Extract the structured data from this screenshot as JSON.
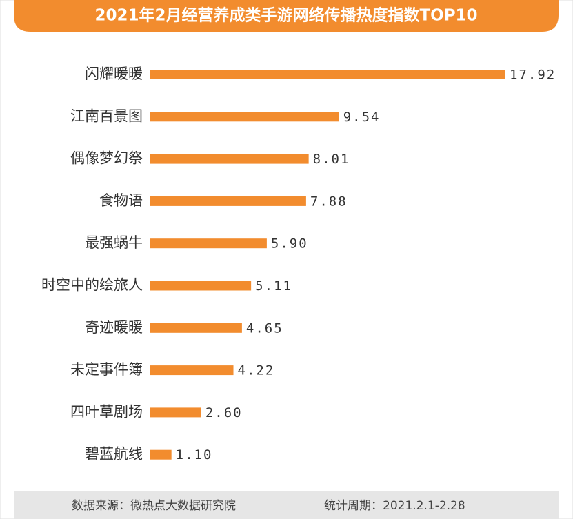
{
  "chart_data": {
    "type": "bar",
    "orientation": "horizontal",
    "title": "2021年2月经营养成类手游网络传播热度指数TOP10",
    "categories": [
      "闪耀暖暖",
      "江南百景图",
      "偶像梦幻祭",
      "食物语",
      "最强蜗牛",
      "时空中的绘旅人",
      "奇迹暖暖",
      "未定事件簿",
      "四叶草剧场",
      "碧蓝航线"
    ],
    "values": [
      17.92,
      9.54,
      8.01,
      7.88,
      5.9,
      5.11,
      4.65,
      4.22,
      2.6,
      1.1
    ],
    "value_labels": [
      "17.92",
      "9.54",
      "8.01",
      "7.88",
      "5.90",
      "5.11",
      "4.65",
      "4.22",
      "2.60",
      "1.10"
    ],
    "color": "#f28c2e",
    "source": "数据来源：微热点大数据研究院",
    "period": "统计周期：2021.2.1-2.28"
  }
}
